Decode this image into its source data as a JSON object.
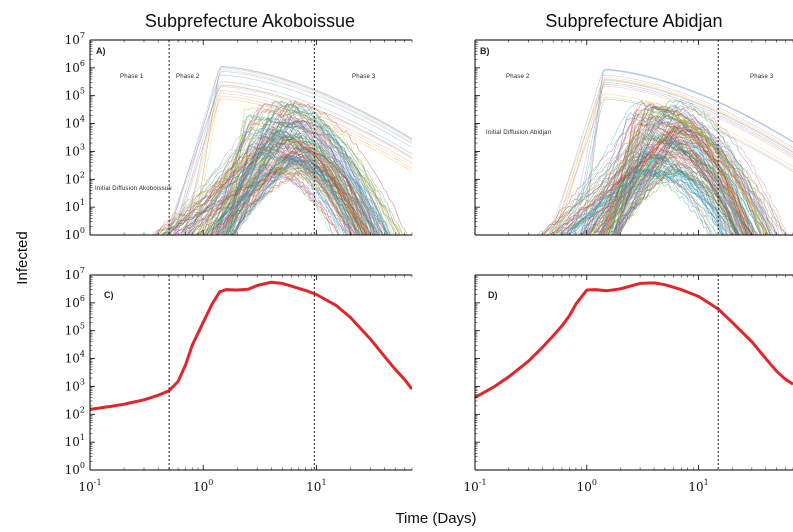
{
  "figure": {
    "ylabel": "Infected",
    "xlabel": "Time (Days)"
  },
  "colors": {
    "mean_curve": "#e0262b",
    "phase_line": "#222222",
    "trajectory_palette": [
      "#1f77b4",
      "#2ca02c",
      "#d62728",
      "#9467bd",
      "#8c564b",
      "#17becf",
      "#bcbd22",
      "#7f7f7f",
      "#e377c2",
      "#ff7f0e",
      "#2e8b57",
      "#4682b4"
    ]
  },
  "chart_data": [
    {
      "panel": "A)",
      "type": "line",
      "title": "Subprefecture Akoboissue",
      "x_scale": "log",
      "y_scale": "log",
      "xlim": [
        0.1,
        70
      ],
      "ylim": [
        1,
        10000000
      ],
      "phase_lines": [
        0.5,
        9.6
      ],
      "annotations": [
        "Phase 1",
        "Phase 2",
        "Phase 3",
        "Initial Diffusion Akoboissue"
      ],
      "series_description_count": 150,
      "envelope": {
        "peak_day": 4.0,
        "peak_infected_median": 20000,
        "end_day": 60
      }
    },
    {
      "panel": "B)",
      "type": "line",
      "title": "Subprefecture Abidjan",
      "x_scale": "log",
      "y_scale": "log",
      "xlim": [
        0.1,
        70
      ],
      "ylim": [
        1,
        10000000
      ],
      "phase_lines": [
        15
      ],
      "annotations": [
        "Phase 2",
        "Phase 3",
        "Initial Diffusion Abidjan"
      ],
      "series_description_count": 150,
      "envelope": {
        "peak_day": 4.0,
        "peak_infected_median": 20000,
        "end_day": 60
      }
    },
    {
      "panel": "C)",
      "type": "line",
      "x_scale": "log",
      "y_scale": "log",
      "xlim": [
        0.1,
        70
      ],
      "ylim": [
        1,
        10000000
      ],
      "phase_lines": [
        0.5,
        9.6
      ],
      "series": [
        {
          "x": [
            0.1,
            0.15,
            0.2,
            0.3,
            0.4,
            0.5,
            0.6,
            0.7,
            0.8,
            1.0,
            1.2,
            1.4,
            1.6,
            2.0,
            2.5,
            3.0,
            4.0,
            5.0,
            6.0,
            8.0,
            10,
            15,
            20,
            30,
            40,
            50,
            60,
            70
          ],
          "y": [
            150,
            190,
            230,
            330,
            480,
            700,
            1500,
            6000,
            30000,
            200000,
            900000,
            2500000,
            3000000,
            2900000,
            3100000,
            4200000,
            5500000,
            5000000,
            4000000,
            2800000,
            2000000,
            800000,
            300000,
            50000,
            12000,
            4000,
            1800,
            800
          ]
        }
      ]
    },
    {
      "panel": "D)",
      "type": "line",
      "x_scale": "log",
      "y_scale": "log",
      "xlim": [
        0.1,
        70
      ],
      "ylim": [
        1,
        10000000
      ],
      "phase_lines": [
        15
      ],
      "series": [
        {
          "x": [
            0.1,
            0.15,
            0.2,
            0.3,
            0.4,
            0.5,
            0.6,
            0.7,
            0.8,
            1.0,
            1.2,
            1.5,
            2.0,
            3.0,
            4.0,
            5.0,
            7.0,
            10,
            15,
            20,
            30,
            40,
            50,
            60,
            70
          ],
          "y": [
            400,
            1000,
            2200,
            8000,
            25000,
            65000,
            150000,
            350000,
            900000,
            2900000,
            3000000,
            2700000,
            3200000,
            5000000,
            5200000,
            4500000,
            3000000,
            1700000,
            600000,
            200000,
            40000,
            10000,
            3500,
            1800,
            1200
          ]
        }
      ]
    }
  ]
}
